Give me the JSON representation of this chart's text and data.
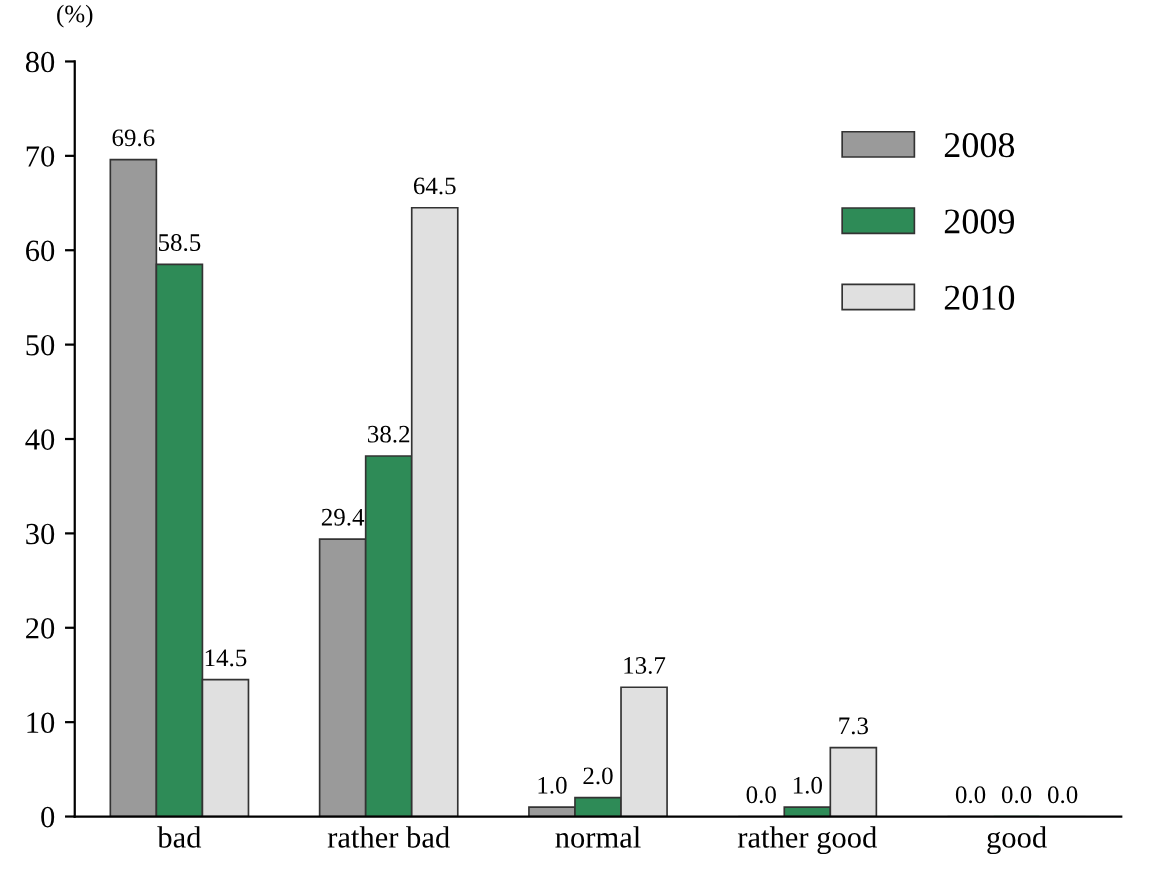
{
  "chart_data": {
    "type": "bar",
    "ylabel": "(%)",
    "categories": [
      "bad",
      "rather bad",
      "normal",
      "rather good",
      "good"
    ],
    "series": [
      {
        "name": "2008",
        "color": "#9a9a9a",
        "values": [
          69.6,
          29.4,
          1.0,
          0.0,
          0.0
        ],
        "value_labels": [
          "69.6",
          "29.4",
          "1.0",
          "0.0",
          "0.0"
        ]
      },
      {
        "name": "2009",
        "color": "#2e8b57",
        "values": [
          58.5,
          38.2,
          2.0,
          1.0,
          0.0
        ],
        "value_labels": [
          "58.5",
          "38.2",
          "2.0",
          "1.0",
          "0.0"
        ]
      },
      {
        "name": "2010",
        "color": "#e0e0e0",
        "values": [
          14.5,
          64.5,
          13.7,
          7.3,
          0.0
        ],
        "value_labels": [
          "14.5",
          "64.5",
          "13.7",
          "7.3",
          "0.0"
        ]
      }
    ],
    "ylim": [
      0,
      80
    ],
    "yticks": [
      0,
      10,
      20,
      30,
      40,
      50,
      60,
      70,
      80
    ],
    "grid": false,
    "legend": "top right"
  }
}
